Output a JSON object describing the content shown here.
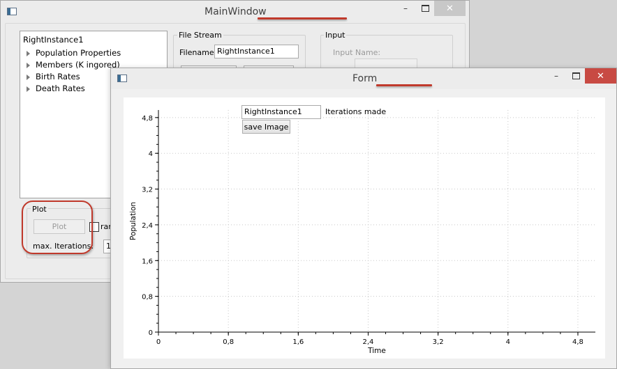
{
  "main_window": {
    "title": "MainWindow",
    "tree": {
      "root": "RightInstance1",
      "items": [
        "Population Properties",
        "Members  (K ingored)",
        "Birth Rates",
        "Death Rates"
      ]
    },
    "file_stream": {
      "group_label": "File Stream",
      "filename_label": "Filename:",
      "filename_value": "RightInstance1"
    },
    "input": {
      "group_label": "Input",
      "input_name_label": "Input Name:"
    },
    "plot": {
      "group_label": "Plot",
      "plot_button": "Plot",
      "checkbox_label_partial": "ran",
      "max_iterations_label": "max. Iterations:",
      "max_iterations_value_partial": "1"
    }
  },
  "form_window": {
    "title": "Form",
    "instance_value": "RightInstance1",
    "iterations_label": "Iterations made",
    "save_button": "save Image"
  },
  "chart_data": {
    "type": "line",
    "series": [],
    "xlabel": "Time",
    "ylabel": "Population",
    "xlim": [
      0,
      5
    ],
    "ylim": [
      0,
      5
    ],
    "x_ticks": [
      "0",
      "0,8",
      "1,6",
      "2,4",
      "3,2",
      "4",
      "4,8"
    ],
    "y_ticks": [
      "0",
      "0,8",
      "1,6",
      "2,4",
      "3,2",
      "4",
      "4,8"
    ],
    "grid": true
  },
  "colors": {
    "annotation_red": "#c0392b",
    "close_red": "#c84a43"
  }
}
